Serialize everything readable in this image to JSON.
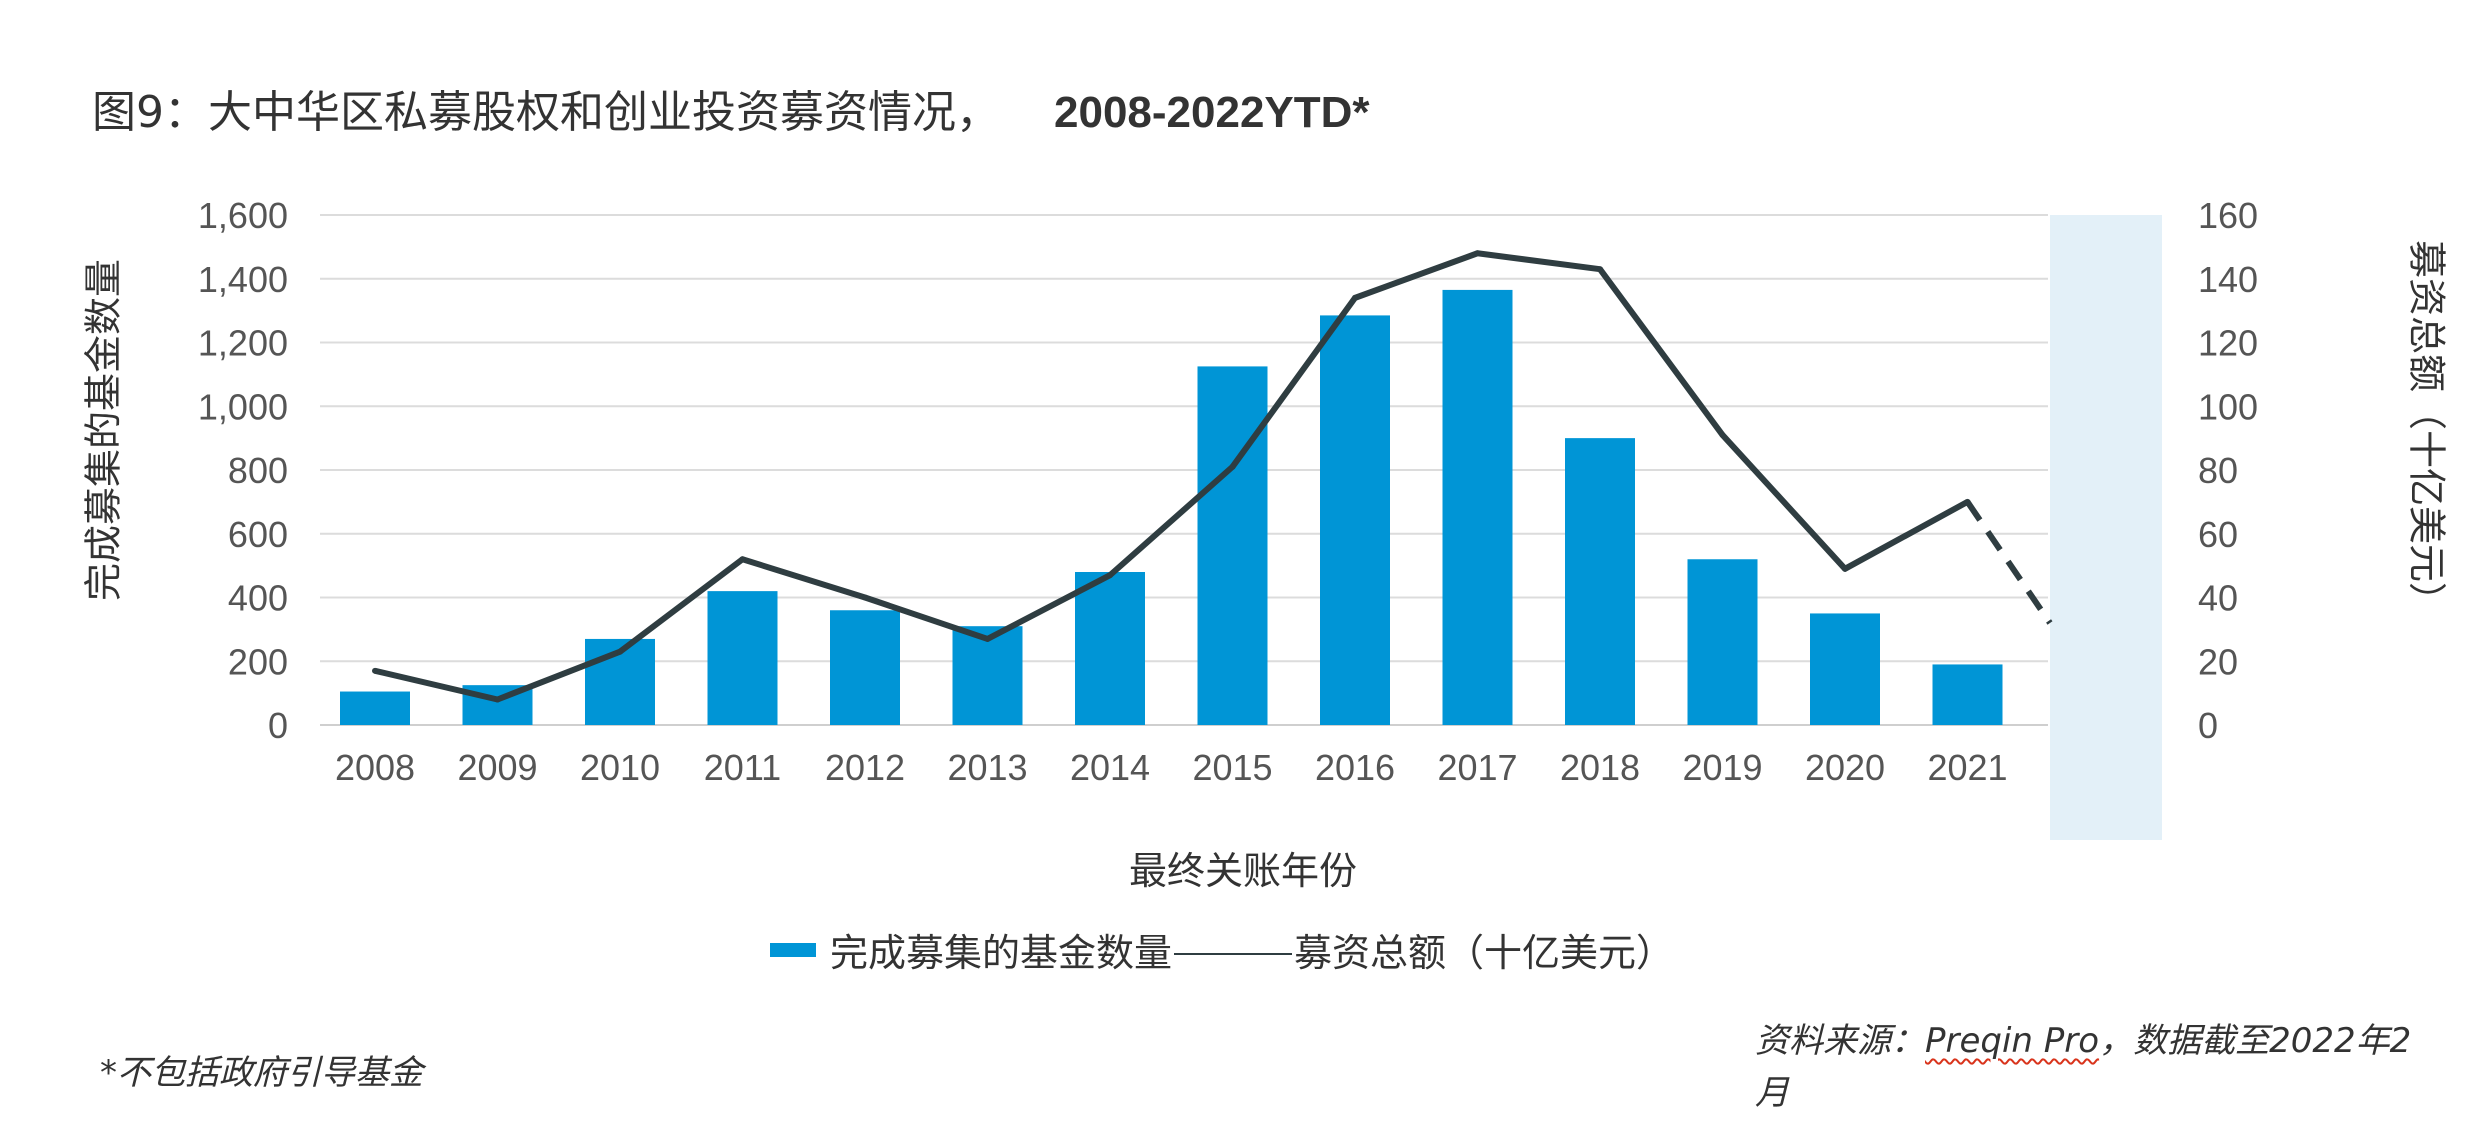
{
  "title": {
    "prefix": "图9：大中华区私募股权和创业投资募资情况，",
    "bold": "2008-2022YTD*"
  },
  "legend": {
    "bar_label": "完成募集的基金数量",
    "line_label": "募资总额（十亿美元）"
  },
  "footnote": "*不包括政府引导基金",
  "source": {
    "prefix": "资料来源：",
    "product": "Preqin Pro",
    "suffix": "，数据截至2022年2月"
  },
  "colors": {
    "bar": "#0095d6",
    "line": "#2f3d41",
    "shade": "#e3f0f8",
    "grid": "#dcdcdc"
  },
  "chart_data": {
    "type": "bar",
    "title": "图9：大中华区私募股权和创业投资募资情况， 2008-2022YTD*",
    "xlabel": "最终关账年份",
    "ylabel_left": "完成募集的基金数量",
    "ylabel_right": "募资总额（十亿美元）",
    "categories": [
      "2008",
      "2009",
      "2010",
      "2011",
      "2012",
      "2013",
      "2014",
      "2015",
      "2016",
      "2017",
      "2018",
      "2019",
      "2020",
      "2021"
    ],
    "left_ticks": [
      "0",
      "200",
      "400",
      "600",
      "800",
      "1,000",
      "1,200",
      "1,400",
      "1,600"
    ],
    "right_ticks": [
      "0",
      "20",
      "40",
      "60",
      "80",
      "100",
      "120",
      "140",
      "160"
    ],
    "ylim_left": [
      0,
      1600
    ],
    "ylim_right": [
      0,
      160
    ],
    "grid": true,
    "legend_position": "bottom",
    "series": [
      {
        "name": "完成募集的基金数量",
        "type": "bar",
        "axis": "left",
        "values": [
          105,
          125,
          270,
          420,
          360,
          310,
          480,
          1125,
          1285,
          1365,
          900,
          520,
          350,
          190
        ]
      },
      {
        "name": "募资总额（十亿美元）",
        "type": "line",
        "axis": "right",
        "values": [
          17,
          8,
          23,
          52,
          40,
          27,
          47,
          81,
          134,
          148,
          143,
          91,
          49,
          70
        ],
        "ytd_2022_dashed_end": 32
      }
    ]
  }
}
